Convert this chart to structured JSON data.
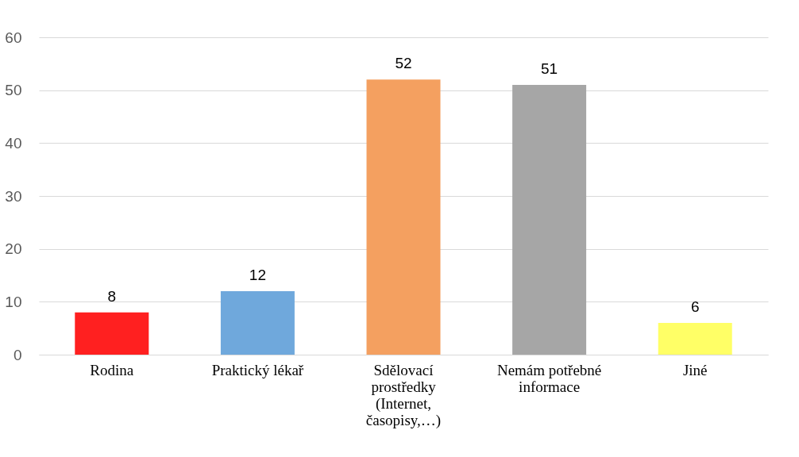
{
  "chart_data": {
    "type": "bar",
    "categories": [
      "Rodina",
      "Praktický lékař",
      "Sdělovací prostředky (Internet, časopisy,…)",
      "Nemám potřebné informace",
      "Jiné"
    ],
    "values": [
      8,
      12,
      52,
      51,
      6
    ],
    "colors": [
      "#ff2020",
      "#6fa8dc",
      "#f4a060",
      "#a6a6a6",
      "#ffff66"
    ],
    "ylim": [
      0,
      60
    ],
    "yticks": [
      0,
      10,
      20,
      30,
      40,
      50,
      60
    ],
    "grid": "y",
    "data_labels": true
  }
}
